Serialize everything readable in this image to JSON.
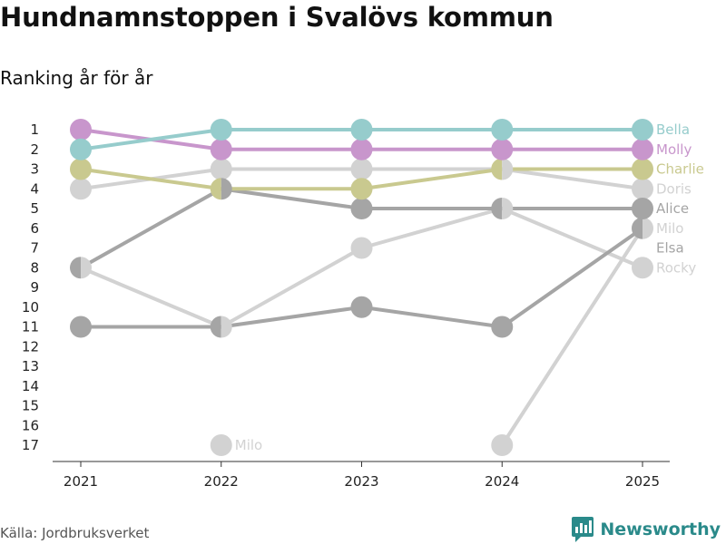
{
  "title": "Hundnamnstoppen i Svalövs kommun",
  "subtitle": "Ranking år för år",
  "source": "Källa: Jordbruksverket",
  "brand": "Newsworthy",
  "chart_data": {
    "type": "line",
    "subtype": "bump",
    "x": [
      2021,
      2022,
      2023,
      2024,
      2025
    ],
    "y_ticks": [
      1,
      2,
      3,
      4,
      5,
      6,
      7,
      8,
      9,
      10,
      11,
      12,
      13,
      14,
      15,
      16,
      17
    ],
    "ylim": [
      1,
      17
    ],
    "y_reversed": true,
    "series": [
      {
        "name": "Doris",
        "color": "#d2d2d2",
        "values": [
          4,
          3,
          3,
          3,
          4
        ]
      },
      {
        "name": "Rocky",
        "color": "#d2d2d2",
        "values": [
          8,
          11,
          7,
          5,
          8
        ]
      },
      {
        "name": "Milo",
        "color": "#d2d2d2",
        "values": [
          null,
          17,
          null,
          17,
          6
        ]
      },
      {
        "name": "Elsa",
        "color": "#a5a5a5",
        "values": [
          11,
          11,
          10,
          11,
          6
        ]
      },
      {
        "name": "Alice",
        "color": "#a5a5a5",
        "values": [
          8,
          4,
          5,
          5,
          5
        ]
      },
      {
        "name": "Charlie",
        "color": "#c9c98f",
        "values": [
          3,
          4,
          4,
          3,
          3
        ]
      },
      {
        "name": "Molly",
        "color": "#c896cc",
        "values": [
          1,
          2,
          2,
          2,
          2
        ]
      },
      {
        "name": "Bella",
        "color": "#96cccc",
        "values": [
          2,
          1,
          1,
          1,
          1
        ]
      }
    ],
    "annotations": [
      {
        "text": "Milo",
        "x": 2022,
        "y": 17,
        "color": "#d2d2d2"
      }
    ]
  }
}
